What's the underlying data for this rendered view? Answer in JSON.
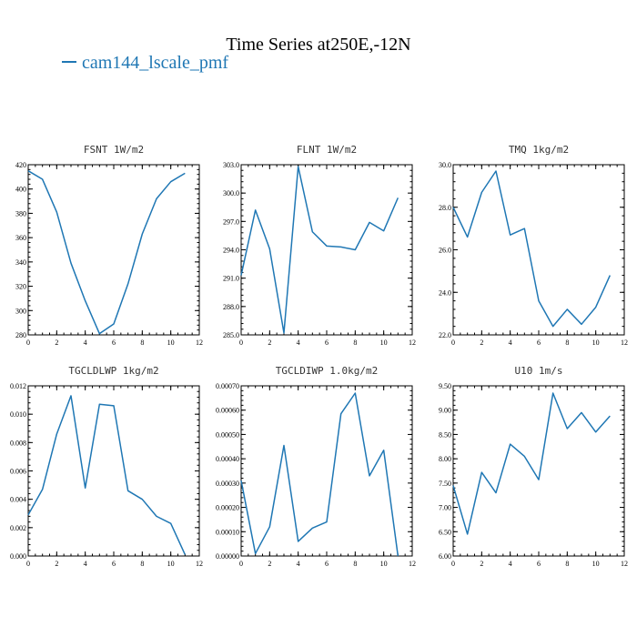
{
  "figure": {
    "title": "Time Series at250E,-12N",
    "legend_label": "cam144_lscale_pmf",
    "line_color": "#1f77b4"
  },
  "chart_data": [
    {
      "type": "line",
      "title": "FSNT   1W/m2",
      "xlim": [
        0,
        12
      ],
      "ylim": [
        280,
        420
      ],
      "xticks": [
        0,
        2,
        4,
        6,
        8,
        10,
        12
      ],
      "xtick_labels": [
        "0",
        "2",
        "4",
        "6",
        "8",
        "10",
        "12"
      ],
      "yticks": [
        280,
        300,
        320,
        340,
        360,
        380,
        400,
        420
      ],
      "ytick_labels": [
        "280",
        "300",
        "320",
        "340",
        "360",
        "380",
        "400",
        "420"
      ],
      "series": [
        {
          "name": "cam144_lscale_pmf",
          "x": [
            0,
            1,
            2,
            3,
            4,
            5,
            6,
            7,
            8,
            9,
            10,
            11
          ],
          "y": [
            415,
            408,
            381,
            339,
            308,
            281,
            289,
            322,
            363,
            392,
            406,
            413
          ]
        }
      ]
    },
    {
      "type": "line",
      "title": "FLNT   1W/m2",
      "xlim": [
        0,
        12
      ],
      "ylim": [
        285.0,
        303.0
      ],
      "xticks": [
        0,
        2,
        4,
        6,
        8,
        10,
        12
      ],
      "xtick_labels": [
        "0",
        "2",
        "4",
        "6",
        "8",
        "10",
        "12"
      ],
      "yticks": [
        285,
        288,
        291,
        294,
        297,
        300,
        303
      ],
      "ytick_labels": [
        "285.0",
        "288.0",
        "291.0",
        "294.0",
        "297.0",
        "300.0",
        "303.0"
      ],
      "series": [
        {
          "name": "cam144_lscale_pmf",
          "x": [
            0,
            1,
            2,
            3,
            4,
            5,
            6,
            7,
            8,
            9,
            10,
            11
          ],
          "y": [
            291.3,
            298.2,
            294.1,
            285.2,
            302.8,
            295.9,
            294.4,
            294.3,
            294.0,
            296.9,
            296.0,
            299.5
          ]
        }
      ]
    },
    {
      "type": "line",
      "title": "TMQ   1kg/m2",
      "xlim": [
        0,
        12
      ],
      "ylim": [
        22.0,
        30.0
      ],
      "xticks": [
        0,
        2,
        4,
        6,
        8,
        10,
        12
      ],
      "xtick_labels": [
        "0",
        "2",
        "4",
        "6",
        "8",
        "10",
        "12"
      ],
      "yticks": [
        22,
        24,
        26,
        28,
        30
      ],
      "ytick_labels": [
        "22.0",
        "24.0",
        "26.0",
        "28.0",
        "30.0"
      ],
      "series": [
        {
          "name": "cam144_lscale_pmf",
          "x": [
            0,
            1,
            2,
            3,
            4,
            5,
            6,
            7,
            8,
            9,
            10,
            11
          ],
          "y": [
            28.0,
            26.6,
            28.7,
            29.7,
            26.7,
            27.0,
            23.6,
            22.4,
            23.2,
            22.5,
            23.3,
            24.8
          ]
        }
      ]
    },
    {
      "type": "line",
      "title": "TGCLDLWP   1kg/m2",
      "xlim": [
        0,
        12
      ],
      "ylim": [
        0.0,
        0.012
      ],
      "xticks": [
        0,
        2,
        4,
        6,
        8,
        10,
        12
      ],
      "xtick_labels": [
        "0",
        "2",
        "4",
        "6",
        "8",
        "10",
        "12"
      ],
      "yticks": [
        0,
        0.002,
        0.004,
        0.006,
        0.008,
        0.01,
        0.012
      ],
      "ytick_labels": [
        "0.000",
        "0.002",
        "0.004",
        "0.006",
        "0.008",
        "0.010",
        "0.012"
      ],
      "series": [
        {
          "name": "cam144_lscale_pmf",
          "x": [
            0,
            1,
            2,
            3,
            4,
            5,
            6,
            7,
            8,
            9,
            10,
            11
          ],
          "y": [
            0.0029,
            0.0047,
            0.0086,
            0.0113,
            0.0048,
            0.0107,
            0.0106,
            0.0046,
            0.004,
            0.0028,
            0.0023,
            0.0001
          ]
        }
      ]
    },
    {
      "type": "line",
      "title": "TGCLDIWP   1.0kg/m2",
      "xlim": [
        0,
        12
      ],
      "ylim": [
        0.0,
        0.0007
      ],
      "xticks": [
        0,
        2,
        4,
        6,
        8,
        10,
        12
      ],
      "xtick_labels": [
        "0",
        "2",
        "4",
        "6",
        "8",
        "10",
        "12"
      ],
      "yticks": [
        0,
        0.0001,
        0.0002,
        0.0003,
        0.0004,
        0.0005,
        0.0006,
        0.0007
      ],
      "ytick_labels": [
        "0.00000",
        "0.00010",
        "0.00020",
        "0.00030",
        "0.00040",
        "0.00050",
        "0.00060",
        "0.00070"
      ],
      "series": [
        {
          "name": "cam144_lscale_pmf",
          "x": [
            0,
            1,
            2,
            3,
            4,
            5,
            6,
            7,
            8,
            9,
            10,
            11
          ],
          "y": [
            0.00031,
            1e-05,
            0.00012,
            0.000455,
            6e-05,
            0.000115,
            0.00014,
            0.000585,
            0.00067,
            0.00033,
            0.000435,
            0.0
          ]
        }
      ]
    },
    {
      "type": "line",
      "title": "U10   1m/s",
      "xlim": [
        0,
        12
      ],
      "ylim": [
        6.0,
        9.5
      ],
      "xticks": [
        0,
        2,
        4,
        6,
        8,
        10,
        12
      ],
      "xtick_labels": [
        "0",
        "2",
        "4",
        "6",
        "8",
        "10",
        "12"
      ],
      "yticks": [
        6.0,
        6.5,
        7.0,
        7.5,
        8.0,
        8.5,
        9.0,
        9.5
      ],
      "ytick_labels": [
        "6.00",
        "6.50",
        "7.00",
        "7.50",
        "8.00",
        "8.50",
        "9.00",
        "9.50"
      ],
      "series": [
        {
          "name": "cam144_lscale_pmf",
          "x": [
            0,
            1,
            2,
            3,
            4,
            5,
            6,
            7,
            8,
            9,
            10,
            11
          ],
          "y": [
            7.45,
            6.45,
            7.72,
            7.3,
            8.3,
            8.05,
            7.57,
            9.35,
            8.62,
            8.95,
            8.55,
            8.88
          ]
        }
      ]
    }
  ]
}
